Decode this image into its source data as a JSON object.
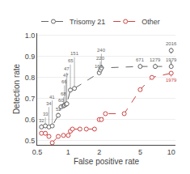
{
  "chart_data": {
    "type": "line",
    "xlabel": "False positive rate",
    "ylabel": "Detection rate",
    "log": "x",
    "grid": "y",
    "legend": "upper left",
    "marker": "circle",
    "xlim": [
      0.5,
      11.0
    ],
    "ylim": [
      0.48,
      1.01
    ],
    "xticks": [
      0.5,
      1,
      2,
      5,
      10
    ],
    "yticks": [
      0.5,
      0.6,
      0.7,
      0.8,
      0.9,
      {
        "value": 1,
        "label": "1.0"
      }
    ],
    "series": [
      {
        "name": "Trisomy 21",
        "color": "#666666",
        "line_style": "dash",
        "x": [
          0.55,
          0.6,
          0.65,
          0.7,
          0.8,
          0.85,
          0.9,
          0.92,
          0.95,
          0.97,
          1.05,
          1.15,
          2.0,
          2.05,
          2.1,
          5.0,
          7.0,
          10.0,
          10.0
        ],
        "values": [
          0.565,
          0.57,
          0.565,
          0.57,
          0.62,
          0.66,
          0.665,
          0.668,
          0.672,
          0.675,
          0.74,
          0.748,
          0.822,
          0.835,
          0.845,
          0.852,
          0.852,
          0.852,
          0.928
        ],
        "labels": [
          "32",
          "33",
          "34",
          "41",
          "52",
          "60",
          "68",
          "66",
          "47",
          "47",
          "65",
          "151",
          "163",
          "220",
          "240",
          "671",
          "1279",
          "1979",
          "2016"
        ]
      },
      {
        "name": "Other",
        "color": "#cc4444",
        "line_style": "dash",
        "x": [
          0.55,
          0.6,
          0.65,
          0.7,
          0.8,
          0.9,
          1.0,
          1.05,
          1.1,
          1.3,
          1.5,
          1.8,
          2.0,
          2.1,
          2.3,
          3.5,
          5.0,
          6.5,
          10.0
        ],
        "values": [
          0.535,
          0.535,
          0.52,
          0.49,
          0.52,
          0.525,
          0.525,
          0.545,
          0.555,
          0.555,
          0.555,
          0.555,
          0.6,
          0.6,
          0.628,
          0.628,
          0.742,
          0.8,
          0.82
        ],
        "labels": [
          null,
          null,
          null,
          null,
          null,
          null,
          null,
          null,
          null,
          null,
          null,
          null,
          null,
          null,
          null,
          null,
          null,
          null,
          "1979"
        ]
      }
    ]
  }
}
